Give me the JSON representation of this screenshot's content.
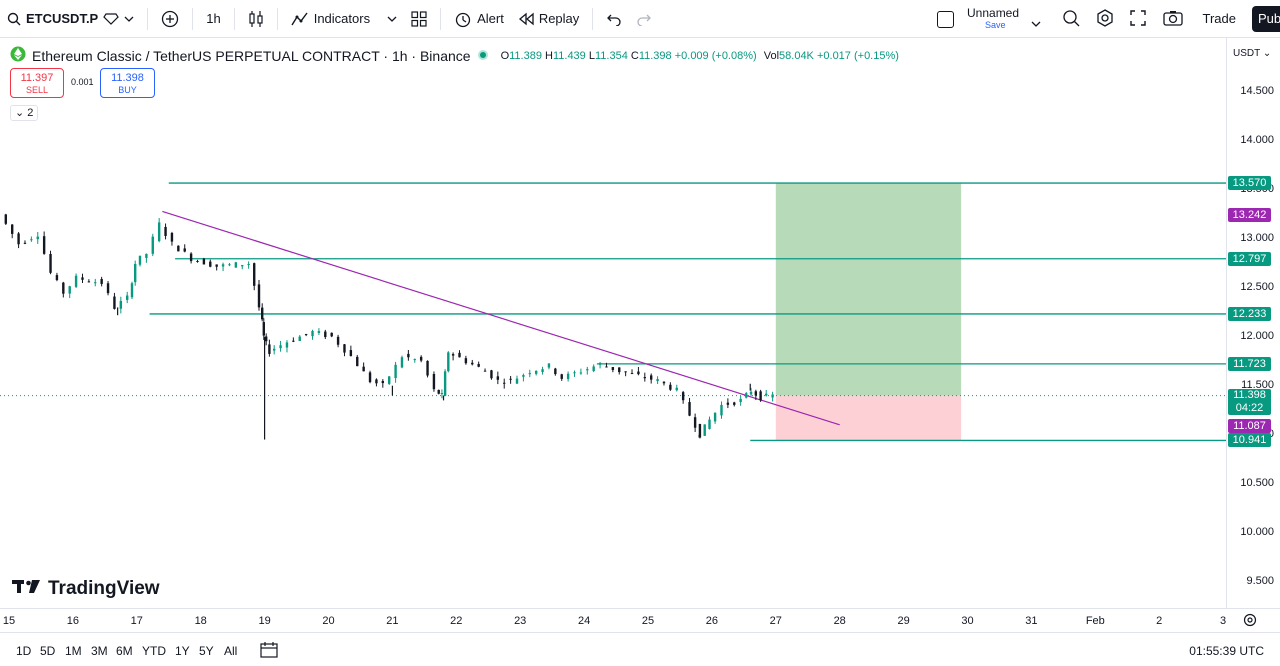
{
  "toolbar": {
    "symbol": "ETCUSDT.P",
    "interval": "1h",
    "indicators": "Indicators",
    "alert": "Alert",
    "replay": "Replay",
    "layout_name": "Unnamed",
    "save": "Save",
    "trade": "Trade",
    "publish": "Pub"
  },
  "legend": {
    "title": "Ethereum Classic / TetherUS PERPETUAL CONTRACT · 1h · Binance",
    "o_label": "O",
    "o": "11.389",
    "h_label": "H",
    "h": "11.439",
    "l_label": "L",
    "l": "11.354",
    "c_label": "C",
    "c": "11.398",
    "change": "+0.009 (+0.08%)",
    "vol_label": "Vol",
    "vol": "58.04K",
    "vol_change": "+0.017 (+0.15%)"
  },
  "trade_panel": {
    "sell_price": "11.397",
    "sell_label": "SELL",
    "spread": "0.001",
    "buy_price": "11.398",
    "buy_label": "BUY",
    "indicator_count": "2"
  },
  "brand": "TradingView",
  "currency": "USDT",
  "price_ticks": [
    "14.500",
    "14.000",
    "13.500",
    "13.000",
    "12.500",
    "12.000",
    "11.500",
    "11.000",
    "10.500",
    "10.000",
    "9.500"
  ],
  "price_tags": [
    {
      "value": "13.570",
      "color": "#089981"
    },
    {
      "value": "13.242",
      "color": "#9c27b0"
    },
    {
      "value": "12.797",
      "color": "#089981"
    },
    {
      "value": "12.233",
      "color": "#089981"
    },
    {
      "value": "11.723",
      "color": "#089981"
    },
    {
      "value": "11.398",
      "color": "#089981",
      "sub": "04:22"
    },
    {
      "value": "11.087",
      "color": "#9c27b0"
    },
    {
      "value": "10.941",
      "color": "#089981"
    }
  ],
  "time_ticks": [
    "15",
    "16",
    "17",
    "18",
    "19",
    "20",
    "21",
    "22",
    "23",
    "24",
    "25",
    "26",
    "27",
    "28",
    "29",
    "30",
    "31",
    "Feb",
    "2",
    "3"
  ],
  "ranges": [
    "1D",
    "5D",
    "1M",
    "3M",
    "6M",
    "YTD",
    "1Y",
    "5Y",
    "All"
  ],
  "clock": "01:55:39 UTC",
  "colors": {
    "up": "#089981",
    "down": "#131722",
    "level": "#089981",
    "trend": "#9c27b0",
    "target_zone": "#b7dbb8",
    "stop_zone": "#fdd0d6"
  },
  "chart_data": {
    "type": "candlestick",
    "symbol": "ETCUSDT.P",
    "interval": "1h",
    "price_range": [
      9.3,
      14.75
    ],
    "horizontal_levels": [
      13.57,
      12.797,
      12.233,
      11.723,
      10.941
    ],
    "trendline": {
      "from": {
        "day": 17.4,
        "price": 13.28
      },
      "to": {
        "day": 28.0,
        "price": 11.1
      }
    },
    "long_position": {
      "entry": 11.398,
      "target": 13.57,
      "stop": 10.941,
      "from_day": 27.0,
      "to_day": 29.9
    },
    "price_path": [
      {
        "day": 14.9,
        "price": 13.25
      },
      {
        "day": 15.2,
        "price": 12.95
      },
      {
        "day": 15.5,
        "price": 13.05
      },
      {
        "day": 15.7,
        "price": 12.65
      },
      {
        "day": 15.9,
        "price": 12.45
      },
      {
        "day": 16.1,
        "price": 12.6
      },
      {
        "day": 16.5,
        "price": 12.55
      },
      {
        "day": 16.7,
        "price": 12.3
      },
      {
        "day": 16.9,
        "price": 12.4
      },
      {
        "day": 17.0,
        "price": 12.75
      },
      {
        "day": 17.2,
        "price": 12.85
      },
      {
        "day": 17.4,
        "price": 13.15
      },
      {
        "day": 17.6,
        "price": 12.95
      },
      {
        "day": 17.9,
        "price": 12.8
      },
      {
        "day": 18.3,
        "price": 12.72
      },
      {
        "day": 18.8,
        "price": 12.75
      },
      {
        "day": 18.95,
        "price": 12.3
      },
      {
        "day": 19.0,
        "price": 12.0
      },
      {
        "day": 19.1,
        "price": 11.85
      },
      {
        "day": 19.4,
        "price": 11.95
      },
      {
        "day": 19.8,
        "price": 12.05
      },
      {
        "day": 20.1,
        "price": 12.0
      },
      {
        "day": 20.4,
        "price": 11.8
      },
      {
        "day": 20.7,
        "price": 11.55
      },
      {
        "day": 20.9,
        "price": 11.5
      },
      {
        "day": 21.2,
        "price": 11.8
      },
      {
        "day": 21.5,
        "price": 11.75
      },
      {
        "day": 21.7,
        "price": 11.45
      },
      {
        "day": 21.8,
        "price": 11.4
      },
      {
        "day": 21.9,
        "price": 11.85
      },
      {
        "day": 22.2,
        "price": 11.75
      },
      {
        "day": 22.5,
        "price": 11.65
      },
      {
        "day": 22.7,
        "price": 11.55
      },
      {
        "day": 22.9,
        "price": 11.55
      },
      {
        "day": 23.2,
        "price": 11.65
      },
      {
        "day": 23.5,
        "price": 11.7
      },
      {
        "day": 23.7,
        "price": 11.58
      },
      {
        "day": 24.0,
        "price": 11.65
      },
      {
        "day": 24.3,
        "price": 11.72
      },
      {
        "day": 24.6,
        "price": 11.65
      },
      {
        "day": 24.9,
        "price": 11.6
      },
      {
        "day": 25.2,
        "price": 11.55
      },
      {
        "day": 25.5,
        "price": 11.45
      },
      {
        "day": 25.7,
        "price": 11.2
      },
      {
        "day": 25.85,
        "price": 11.0
      },
      {
        "day": 26.0,
        "price": 11.15
      },
      {
        "day": 26.2,
        "price": 11.3
      },
      {
        "day": 26.5,
        "price": 11.35
      },
      {
        "day": 26.65,
        "price": 11.45
      },
      {
        "day": 26.8,
        "price": 11.38
      },
      {
        "day": 27.0,
        "price": 11.398
      }
    ],
    "wicks": [
      {
        "day": 16.7,
        "low": 12.22
      },
      {
        "day": 19.0,
        "low": 10.95
      },
      {
        "day": 21.0,
        "low": 11.4
      },
      {
        "day": 21.8,
        "low": 11.35
      },
      {
        "day": 25.8,
        "low": 10.97
      },
      {
        "day": 26.6,
        "high": 11.52
      }
    ]
  }
}
